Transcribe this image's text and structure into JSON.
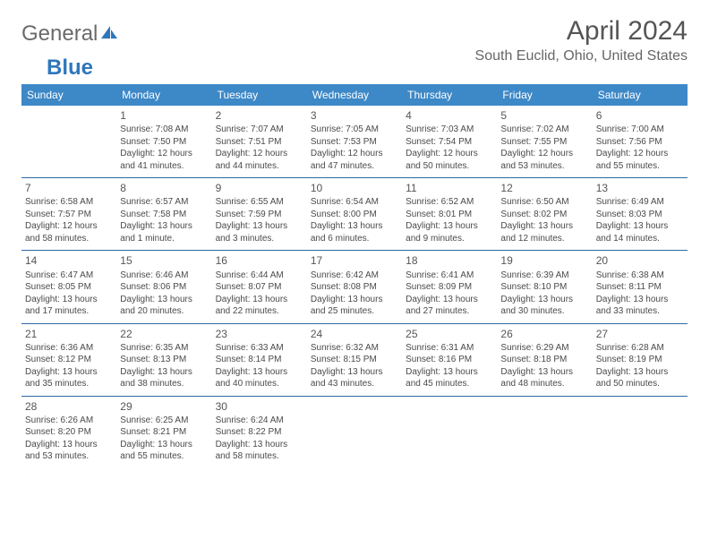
{
  "logo": {
    "part1": "General",
    "part2": "Blue"
  },
  "title": "April 2024",
  "location": "South Euclid, Ohio, United States",
  "colors": {
    "header_bg": "#3d88c7",
    "header_text": "#ffffff",
    "row_border": "#2f6aa3",
    "body_text": "#4a4a4a",
    "title_text": "#555555",
    "logo_gray": "#6a6a6a",
    "logo_blue": "#2f77bb"
  },
  "day_names": [
    "Sunday",
    "Monday",
    "Tuesday",
    "Wednesday",
    "Thursday",
    "Friday",
    "Saturday"
  ],
  "weeks": [
    [
      null,
      {
        "n": "1",
        "sr": "Sunrise: 7:08 AM",
        "ss": "Sunset: 7:50 PM",
        "d1": "Daylight: 12 hours",
        "d2": "and 41 minutes."
      },
      {
        "n": "2",
        "sr": "Sunrise: 7:07 AM",
        "ss": "Sunset: 7:51 PM",
        "d1": "Daylight: 12 hours",
        "d2": "and 44 minutes."
      },
      {
        "n": "3",
        "sr": "Sunrise: 7:05 AM",
        "ss": "Sunset: 7:53 PM",
        "d1": "Daylight: 12 hours",
        "d2": "and 47 minutes."
      },
      {
        "n": "4",
        "sr": "Sunrise: 7:03 AM",
        "ss": "Sunset: 7:54 PM",
        "d1": "Daylight: 12 hours",
        "d2": "and 50 minutes."
      },
      {
        "n": "5",
        "sr": "Sunrise: 7:02 AM",
        "ss": "Sunset: 7:55 PM",
        "d1": "Daylight: 12 hours",
        "d2": "and 53 minutes."
      },
      {
        "n": "6",
        "sr": "Sunrise: 7:00 AM",
        "ss": "Sunset: 7:56 PM",
        "d1": "Daylight: 12 hours",
        "d2": "and 55 minutes."
      }
    ],
    [
      {
        "n": "7",
        "sr": "Sunrise: 6:58 AM",
        "ss": "Sunset: 7:57 PM",
        "d1": "Daylight: 12 hours",
        "d2": "and 58 minutes."
      },
      {
        "n": "8",
        "sr": "Sunrise: 6:57 AM",
        "ss": "Sunset: 7:58 PM",
        "d1": "Daylight: 13 hours",
        "d2": "and 1 minute."
      },
      {
        "n": "9",
        "sr": "Sunrise: 6:55 AM",
        "ss": "Sunset: 7:59 PM",
        "d1": "Daylight: 13 hours",
        "d2": "and 3 minutes."
      },
      {
        "n": "10",
        "sr": "Sunrise: 6:54 AM",
        "ss": "Sunset: 8:00 PM",
        "d1": "Daylight: 13 hours",
        "d2": "and 6 minutes."
      },
      {
        "n": "11",
        "sr": "Sunrise: 6:52 AM",
        "ss": "Sunset: 8:01 PM",
        "d1": "Daylight: 13 hours",
        "d2": "and 9 minutes."
      },
      {
        "n": "12",
        "sr": "Sunrise: 6:50 AM",
        "ss": "Sunset: 8:02 PM",
        "d1": "Daylight: 13 hours",
        "d2": "and 12 minutes."
      },
      {
        "n": "13",
        "sr": "Sunrise: 6:49 AM",
        "ss": "Sunset: 8:03 PM",
        "d1": "Daylight: 13 hours",
        "d2": "and 14 minutes."
      }
    ],
    [
      {
        "n": "14",
        "sr": "Sunrise: 6:47 AM",
        "ss": "Sunset: 8:05 PM",
        "d1": "Daylight: 13 hours",
        "d2": "and 17 minutes."
      },
      {
        "n": "15",
        "sr": "Sunrise: 6:46 AM",
        "ss": "Sunset: 8:06 PM",
        "d1": "Daylight: 13 hours",
        "d2": "and 20 minutes."
      },
      {
        "n": "16",
        "sr": "Sunrise: 6:44 AM",
        "ss": "Sunset: 8:07 PM",
        "d1": "Daylight: 13 hours",
        "d2": "and 22 minutes."
      },
      {
        "n": "17",
        "sr": "Sunrise: 6:42 AM",
        "ss": "Sunset: 8:08 PM",
        "d1": "Daylight: 13 hours",
        "d2": "and 25 minutes."
      },
      {
        "n": "18",
        "sr": "Sunrise: 6:41 AM",
        "ss": "Sunset: 8:09 PM",
        "d1": "Daylight: 13 hours",
        "d2": "and 27 minutes."
      },
      {
        "n": "19",
        "sr": "Sunrise: 6:39 AM",
        "ss": "Sunset: 8:10 PM",
        "d1": "Daylight: 13 hours",
        "d2": "and 30 minutes."
      },
      {
        "n": "20",
        "sr": "Sunrise: 6:38 AM",
        "ss": "Sunset: 8:11 PM",
        "d1": "Daylight: 13 hours",
        "d2": "and 33 minutes."
      }
    ],
    [
      {
        "n": "21",
        "sr": "Sunrise: 6:36 AM",
        "ss": "Sunset: 8:12 PM",
        "d1": "Daylight: 13 hours",
        "d2": "and 35 minutes."
      },
      {
        "n": "22",
        "sr": "Sunrise: 6:35 AM",
        "ss": "Sunset: 8:13 PM",
        "d1": "Daylight: 13 hours",
        "d2": "and 38 minutes."
      },
      {
        "n": "23",
        "sr": "Sunrise: 6:33 AM",
        "ss": "Sunset: 8:14 PM",
        "d1": "Daylight: 13 hours",
        "d2": "and 40 minutes."
      },
      {
        "n": "24",
        "sr": "Sunrise: 6:32 AM",
        "ss": "Sunset: 8:15 PM",
        "d1": "Daylight: 13 hours",
        "d2": "and 43 minutes."
      },
      {
        "n": "25",
        "sr": "Sunrise: 6:31 AM",
        "ss": "Sunset: 8:16 PM",
        "d1": "Daylight: 13 hours",
        "d2": "and 45 minutes."
      },
      {
        "n": "26",
        "sr": "Sunrise: 6:29 AM",
        "ss": "Sunset: 8:18 PM",
        "d1": "Daylight: 13 hours",
        "d2": "and 48 minutes."
      },
      {
        "n": "27",
        "sr": "Sunrise: 6:28 AM",
        "ss": "Sunset: 8:19 PM",
        "d1": "Daylight: 13 hours",
        "d2": "and 50 minutes."
      }
    ],
    [
      {
        "n": "28",
        "sr": "Sunrise: 6:26 AM",
        "ss": "Sunset: 8:20 PM",
        "d1": "Daylight: 13 hours",
        "d2": "and 53 minutes."
      },
      {
        "n": "29",
        "sr": "Sunrise: 6:25 AM",
        "ss": "Sunset: 8:21 PM",
        "d1": "Daylight: 13 hours",
        "d2": "and 55 minutes."
      },
      {
        "n": "30",
        "sr": "Sunrise: 6:24 AM",
        "ss": "Sunset: 8:22 PM",
        "d1": "Daylight: 13 hours",
        "d2": "and 58 minutes."
      },
      null,
      null,
      null,
      null
    ]
  ]
}
